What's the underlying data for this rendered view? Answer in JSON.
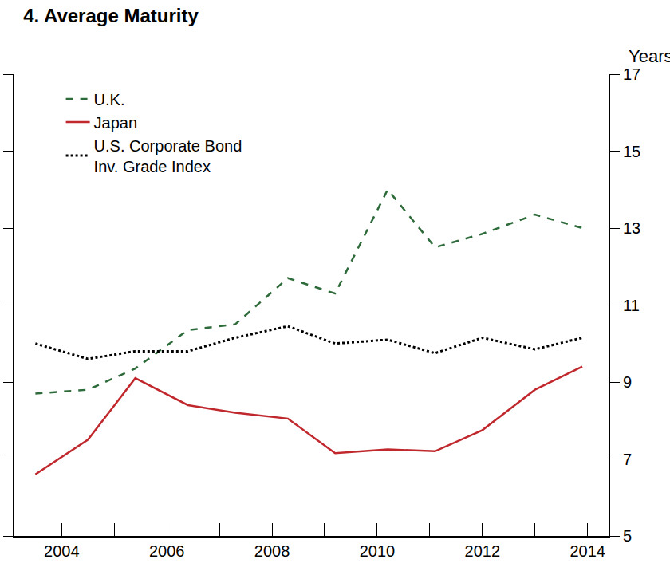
{
  "chart_data": {
    "type": "line",
    "title": "4. Average Maturity",
    "y_label": "Years",
    "x": [
      2003.5,
      2004.5,
      2005.4,
      2006.4,
      2007.3,
      2008.3,
      2009.2,
      2010.2,
      2011.1,
      2012.0,
      2013.0,
      2013.9
    ],
    "series": [
      {
        "name": "U.K.",
        "color": "#2e6b3a",
        "line_style": "dash",
        "values": [
          8.7,
          8.8,
          9.35,
          10.35,
          10.5,
          11.7,
          11.3,
          14.0,
          12.5,
          12.85,
          13.35,
          13.0
        ]
      },
      {
        "name": "Japan",
        "color": "#c0282d",
        "line_style": "solid",
        "values": [
          6.6,
          7.5,
          9.1,
          8.4,
          8.2,
          8.05,
          7.15,
          7.25,
          7.2,
          7.75,
          8.8,
          9.4
        ]
      },
      {
        "name": "U.S. Corporate Bond Inv. Grade Index",
        "color": "#000000",
        "line_style": "dot",
        "values": [
          10.0,
          9.6,
          9.8,
          9.8,
          10.15,
          10.45,
          10.0,
          10.1,
          9.75,
          10.15,
          9.85,
          10.15
        ]
      }
    ],
    "xlim": [
      2003.1,
      2014.4
    ],
    "xticks": [
      2004,
      2006,
      2008,
      2010,
      2012,
      2014
    ],
    "ylim": [
      5,
      17
    ],
    "yticks": [
      5,
      7,
      9,
      11,
      13,
      15,
      17
    ],
    "grid": false,
    "legend": "top left"
  }
}
